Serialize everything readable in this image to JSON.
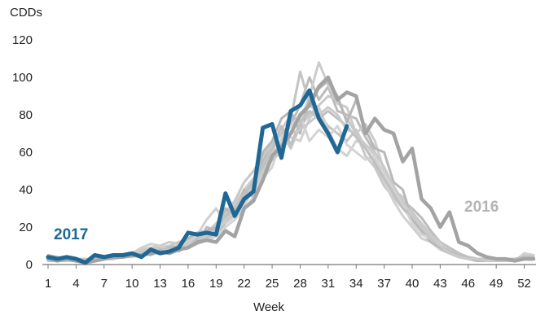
{
  "chart_data": {
    "type": "line",
    "ylabel": "CDDs",
    "xlabel": "Week",
    "xlim": [
      1,
      53
    ],
    "ylim": [
      0,
      120
    ],
    "x_ticks": [
      1,
      4,
      7,
      10,
      13,
      16,
      19,
      22,
      25,
      28,
      31,
      34,
      37,
      40,
      43,
      46,
      49,
      52
    ],
    "y_ticks": [
      0,
      20,
      40,
      60,
      80,
      100,
      120
    ],
    "grid": false,
    "colors": {
      "highlight": "#1f6794",
      "recent": "#a3a3a3",
      "history": [
        "#bcbcbc",
        "#c4c4c4",
        "#cccccc",
        "#c8c8c8",
        "#d0d0d0",
        "#b8b8b8",
        "#d4d4d4",
        "#c0c0c0",
        "#cacaca"
      ]
    },
    "highlight_series": {
      "name": "2017",
      "x": [
        1,
        2,
        3,
        4,
        5,
        6,
        7,
        8,
        9,
        10,
        11,
        12,
        13,
        14,
        15,
        16,
        17,
        18,
        19,
        20,
        21,
        22,
        23,
        24,
        25,
        26,
        27,
        28,
        29,
        30,
        31,
        32,
        33
      ],
      "values": [
        4,
        3,
        4,
        3,
        1,
        5,
        4,
        5,
        5,
        6,
        4,
        8,
        6,
        7,
        9,
        17,
        16,
        17,
        16,
        38,
        26,
        35,
        39,
        73,
        75,
        57,
        82,
        85,
        93,
        78,
        70,
        60,
        74
      ]
    },
    "recent_series": {
      "name": "2016",
      "x": [
        1,
        2,
        3,
        4,
        5,
        6,
        7,
        8,
        9,
        10,
        11,
        12,
        13,
        14,
        15,
        16,
        17,
        18,
        19,
        20,
        21,
        22,
        23,
        24,
        25,
        26,
        27,
        28,
        29,
        30,
        31,
        32,
        33,
        34,
        35,
        36,
        37,
        38,
        39,
        40,
        41,
        42,
        43,
        44,
        45,
        46,
        47,
        48,
        49,
        50,
        51,
        52,
        53
      ],
      "values": [
        3,
        2,
        3,
        2,
        1,
        2,
        3,
        4,
        4,
        5,
        5,
        6,
        7,
        6,
        8,
        9,
        12,
        13,
        12,
        18,
        15,
        30,
        34,
        45,
        58,
        63,
        70,
        80,
        85,
        95,
        100,
        88,
        92,
        90,
        70,
        78,
        72,
        70,
        55,
        62,
        35,
        30,
        20,
        28,
        12,
        10,
        6,
        4,
        3,
        3,
        2,
        3,
        3
      ]
    },
    "history_series": [
      [
        3,
        2,
        2,
        3,
        2,
        3,
        4,
        3,
        4,
        5,
        6,
        7,
        8,
        9,
        7,
        10,
        12,
        20,
        18,
        25,
        30,
        38,
        45,
        55,
        65,
        70,
        75,
        85,
        100,
        88,
        95,
        82,
        80,
        78,
        68,
        60,
        42,
        36,
        34,
        30,
        25,
        18,
        12,
        9,
        6,
        4,
        3,
        3,
        2,
        3,
        2,
        4,
        4
      ],
      [
        4,
        3,
        3,
        2,
        3,
        2,
        3,
        4,
        5,
        4,
        6,
        5,
        7,
        8,
        9,
        11,
        13,
        14,
        16,
        22,
        28,
        36,
        42,
        50,
        58,
        66,
        78,
        103,
        86,
        80,
        74,
        70,
        66,
        72,
        62,
        55,
        45,
        38,
        30,
        24,
        20,
        15,
        10,
        7,
        5,
        4,
        3,
        2,
        3,
        2,
        3,
        3,
        3
      ],
      [
        2,
        3,
        2,
        3,
        2,
        4,
        3,
        4,
        5,
        6,
        8,
        9,
        10,
        12,
        11,
        13,
        15,
        17,
        22,
        26,
        32,
        40,
        46,
        52,
        60,
        72,
        80,
        76,
        90,
        108,
        96,
        86,
        84,
        70,
        75,
        66,
        50,
        40,
        36,
        28,
        18,
        14,
        9,
        6,
        4,
        3,
        2,
        2,
        3,
        2,
        2,
        5,
        4
      ],
      [
        3,
        3,
        4,
        3,
        3,
        3,
        4,
        5,
        4,
        5,
        7,
        8,
        9,
        10,
        12,
        14,
        12,
        16,
        20,
        28,
        34,
        44,
        50,
        58,
        64,
        70,
        62,
        74,
        80,
        85,
        90,
        88,
        78,
        70,
        58,
        52,
        42,
        36,
        30,
        28,
        22,
        16,
        12,
        8,
        5,
        3,
        3,
        2,
        2,
        3,
        3,
        3,
        3
      ],
      [
        2,
        2,
        3,
        2,
        2,
        3,
        3,
        4,
        4,
        6,
        9,
        11,
        10,
        8,
        10,
        12,
        16,
        24,
        30,
        22,
        26,
        32,
        40,
        48,
        56,
        64,
        68,
        66,
        78,
        84,
        72,
        62,
        58,
        66,
        64,
        58,
        44,
        34,
        26,
        20,
        14,
        12,
        8,
        6,
        4,
        3,
        2,
        3,
        2,
        3,
        2,
        6,
        5
      ],
      [
        5,
        4,
        3,
        3,
        2,
        3,
        3,
        3,
        5,
        5,
        6,
        7,
        7,
        9,
        10,
        14,
        17,
        18,
        20,
        30,
        25,
        40,
        36,
        60,
        66,
        78,
        82,
        70,
        88,
        94,
        98,
        90,
        76,
        88,
        72,
        62,
        60,
        44,
        40,
        24,
        18,
        12,
        9,
        6,
        4,
        3,
        2,
        2,
        2,
        2,
        3,
        4,
        4
      ],
      [
        3,
        2,
        2,
        2,
        2,
        2,
        3,
        3,
        4,
        4,
        5,
        6,
        7,
        7,
        8,
        9,
        11,
        13,
        15,
        20,
        24,
        30,
        36,
        46,
        52,
        68,
        74,
        80,
        66,
        72,
        68,
        74,
        64,
        60,
        56,
        58,
        48,
        40,
        32,
        22,
        16,
        14,
        10,
        7,
        5,
        4,
        3,
        3,
        2,
        2,
        2,
        3,
        3
      ],
      [
        4,
        3,
        3,
        3,
        2,
        3,
        4,
        4,
        4,
        5,
        6,
        7,
        8,
        8,
        9,
        10,
        14,
        15,
        19,
        26,
        30,
        38,
        44,
        52,
        62,
        74,
        64,
        76,
        82,
        78,
        82,
        78,
        74,
        68,
        62,
        54,
        46,
        38,
        30,
        26,
        20,
        14,
        10,
        7,
        5,
        4,
        3,
        3,
        2,
        3,
        3,
        4,
        4
      ],
      [
        2,
        2,
        2,
        2,
        2,
        3,
        3,
        3,
        4,
        5,
        6,
        6,
        7,
        8,
        9,
        11,
        12,
        16,
        18,
        24,
        28,
        34,
        42,
        50,
        56,
        60,
        70,
        72,
        76,
        80,
        84,
        80,
        72,
        70,
        64,
        60,
        52,
        42,
        34,
        26,
        20,
        15,
        10,
        6,
        4,
        3,
        3,
        2,
        2,
        2,
        2,
        3,
        3
      ]
    ]
  }
}
